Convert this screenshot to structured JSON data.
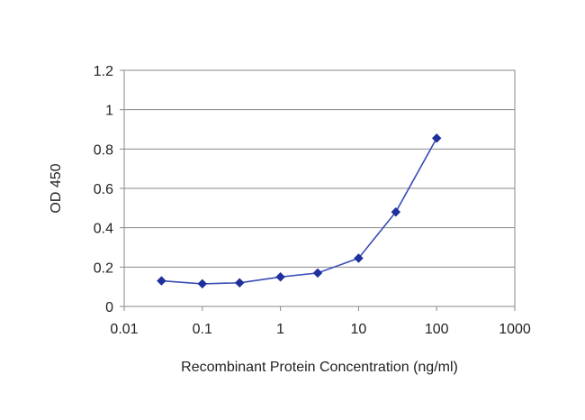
{
  "chart_data": {
    "type": "line",
    "title": "",
    "xlabel": "Recombinant Protein Concentration (ng/ml)",
    "ylabel": "OD 450",
    "x_scale": "log",
    "xlim": [
      0.01,
      1000
    ],
    "ylim": [
      0,
      1.2
    ],
    "x_ticks": [
      "0.01",
      "0.1",
      "1",
      "10",
      "100",
      "1000"
    ],
    "y_ticks": [
      "0",
      "0.2",
      "0.4",
      "0.6",
      "0.8",
      "1",
      "1.2"
    ],
    "grid": "horizontal",
    "legend": "none",
    "series": [
      {
        "color": "#3a4db5",
        "marker": "diamond",
        "x": [
          0.03,
          0.1,
          0.3,
          1,
          3,
          10,
          30,
          100
        ],
        "y": [
          0.13,
          0.115,
          0.12,
          0.15,
          0.17,
          0.245,
          0.48,
          0.855
        ]
      }
    ]
  }
}
